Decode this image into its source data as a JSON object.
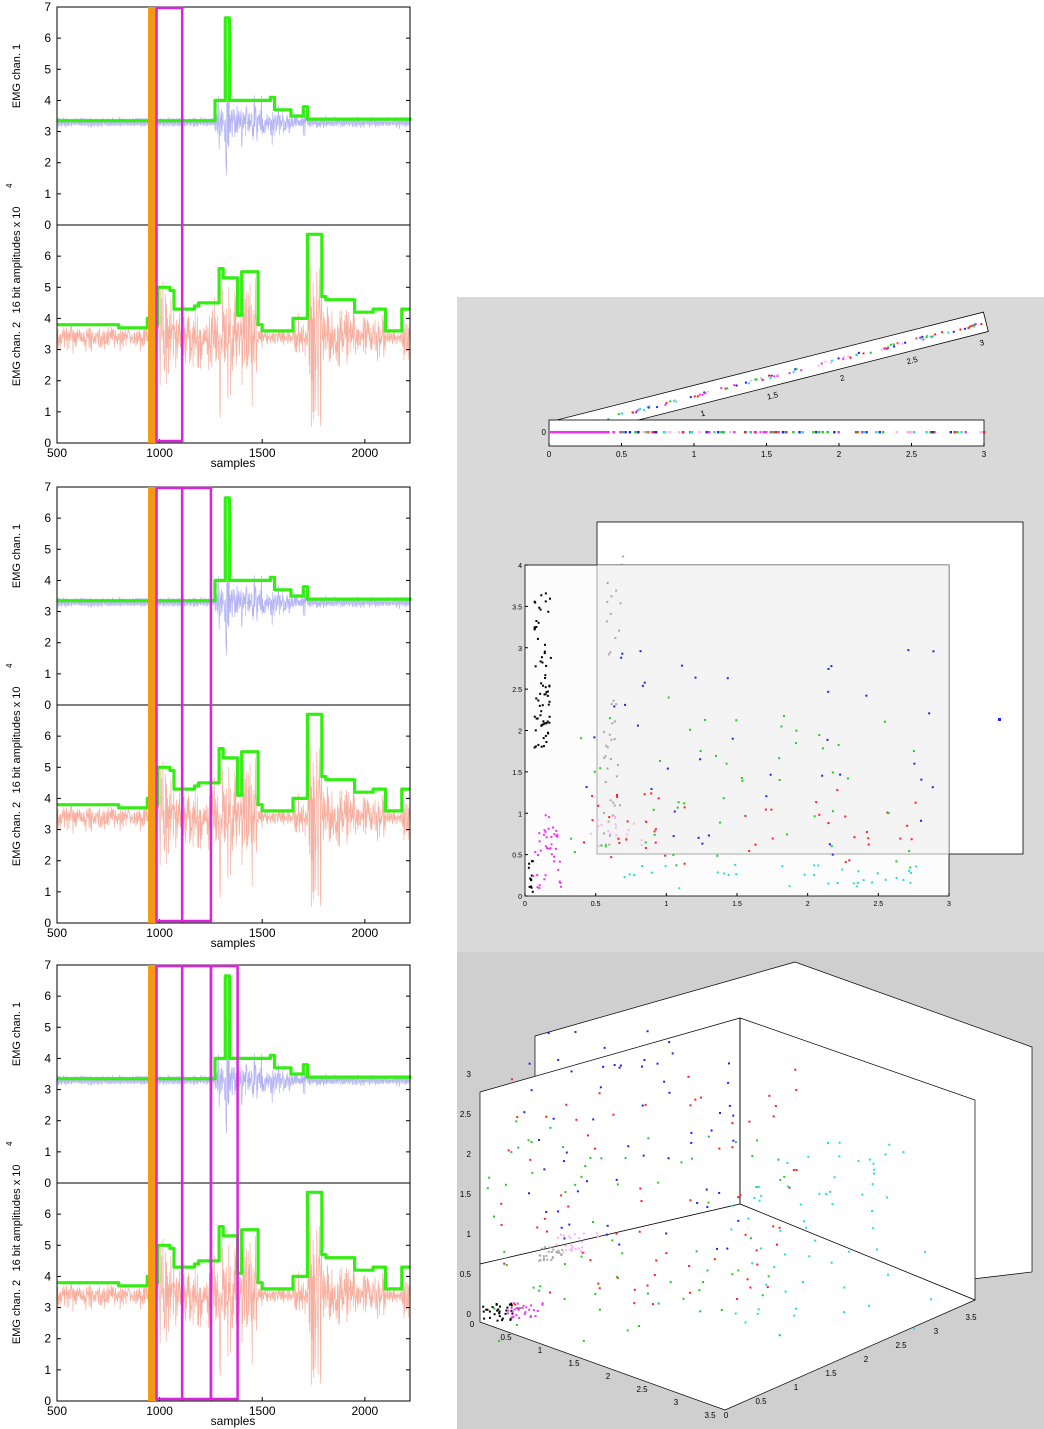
{
  "colors": {
    "envelope": "#33ee11",
    "ch1_signal": "#b4b4f4",
    "ch2_signal": "#f7b0a0",
    "window": "#dd22dd",
    "onset": "#f59a10",
    "panel_bg": "#d9d9d9",
    "cluster_colors": [
      "#000000",
      "#a8a8a8",
      "#ee33ee",
      "#ffb0f0",
      "#ff2020",
      "#22cc22",
      "#2222ee",
      "#22dddd"
    ]
  },
  "emg_panels": {
    "ylabel": "16 bit amplitudes",
    "yexp": "x 10",
    "yexp_sup": "4",
    "xlabel": "samples",
    "ch1_label": "EMG chan. 1",
    "ch2_label": "EMG chan. 2",
    "x_ticks": [
      "500",
      "1000",
      "1500",
      "2000"
    ],
    "y_ticks": [
      "0",
      "1",
      "2",
      "3",
      "4",
      "5",
      "6",
      "7"
    ]
  },
  "chart_data": [
    {
      "type": "line",
      "title": "",
      "xlabel": "samples",
      "ylabel": "16 bit amplitudes x 10^4",
      "xlim": [
        500,
        2220
      ],
      "ylim": [
        0,
        7
      ],
      "onset_sample": 963,
      "windows": [
        [
          985,
          1110
        ]
      ],
      "series": [
        {
          "name": "EMG chan. 1",
          "envelope_x": [
            500,
            1250,
            1270,
            1320,
            1340,
            1540,
            1560,
            1640,
            1700,
            1720,
            2220
          ],
          "envelope_y": [
            3.35,
            3.35,
            4.0,
            6.65,
            4.0,
            4.1,
            3.7,
            3.5,
            3.8,
            3.4,
            3.35
          ]
        },
        {
          "name": "EMG chan. 2",
          "envelope_x": [
            500,
            800,
            940,
            970,
            990,
            1050,
            1070,
            1170,
            1190,
            1290,
            1310,
            1380,
            1400,
            1480,
            1500,
            1630,
            1650,
            1720,
            1740,
            1790,
            1810,
            1900,
            1950,
            2040,
            2100,
            2180,
            2220
          ],
          "envelope_y": [
            3.8,
            3.7,
            4.0,
            3.8,
            5.0,
            4.9,
            4.3,
            4.4,
            4.5,
            5.6,
            5.3,
            4.1,
            5.5,
            3.8,
            3.6,
            3.6,
            4.0,
            6.7,
            6.7,
            4.7,
            4.6,
            4.6,
            4.2,
            4.3,
            3.6,
            4.3,
            4.3
          ]
        }
      ]
    },
    {
      "type": "line",
      "title": "",
      "xlabel": "samples",
      "ylabel": "16 bit amplitudes x 10^4",
      "xlim": [
        500,
        2220
      ],
      "ylim": [
        0,
        7
      ],
      "onset_sample": 963,
      "windows": [
        [
          985,
          1110
        ],
        [
          1110,
          1250
        ]
      ]
    },
    {
      "type": "line",
      "title": "",
      "xlabel": "samples",
      "ylabel": "16 bit amplitudes x 10^4",
      "xlim": [
        500,
        2220
      ],
      "ylim": [
        0,
        7
      ],
      "onset_sample": 963,
      "windows": [
        [
          985,
          1110
        ],
        [
          1110,
          1250
        ],
        [
          1250,
          1380
        ]
      ]
    },
    {
      "type": "scatter",
      "title": "",
      "dims": 1,
      "xlim": [
        0,
        3
      ],
      "x_ticks": [
        "0",
        "0.5",
        "1",
        "1.5",
        "2",
        "2.5",
        "3"
      ],
      "y_ticks": [
        "0"
      ],
      "tilted_ticks": [
        "1",
        "1.5",
        "2",
        "2.5",
        "3"
      ]
    },
    {
      "type": "scatter",
      "title": "",
      "dims": 2,
      "xlim": [
        0,
        3
      ],
      "ylim": [
        0,
        4
      ],
      "x_ticks": [
        "0",
        "0.5",
        "1",
        "1.5",
        "2",
        "2.5",
        "3"
      ],
      "y_ticks": [
        "0",
        "0.5",
        "1",
        "1.5",
        "2",
        "2.5",
        "3",
        "3.5",
        "4"
      ]
    },
    {
      "type": "scatter",
      "title": "",
      "dims": 3,
      "xlim": [
        0,
        3.5
      ],
      "ylim": [
        0,
        3.5
      ],
      "zlim": [
        0,
        3
      ],
      "x_ticks": [
        "0",
        "0.5",
        "1",
        "1.5",
        "2",
        "2.5",
        "3",
        "3.5"
      ],
      "y_ticks": [
        "0",
        "0.5",
        "1",
        "1.5",
        "2",
        "2.5",
        "3",
        "3.5"
      ],
      "z_ticks": [
        "0",
        "0.5",
        "1",
        "1.5",
        "2",
        "2.5",
        "3"
      ]
    }
  ]
}
